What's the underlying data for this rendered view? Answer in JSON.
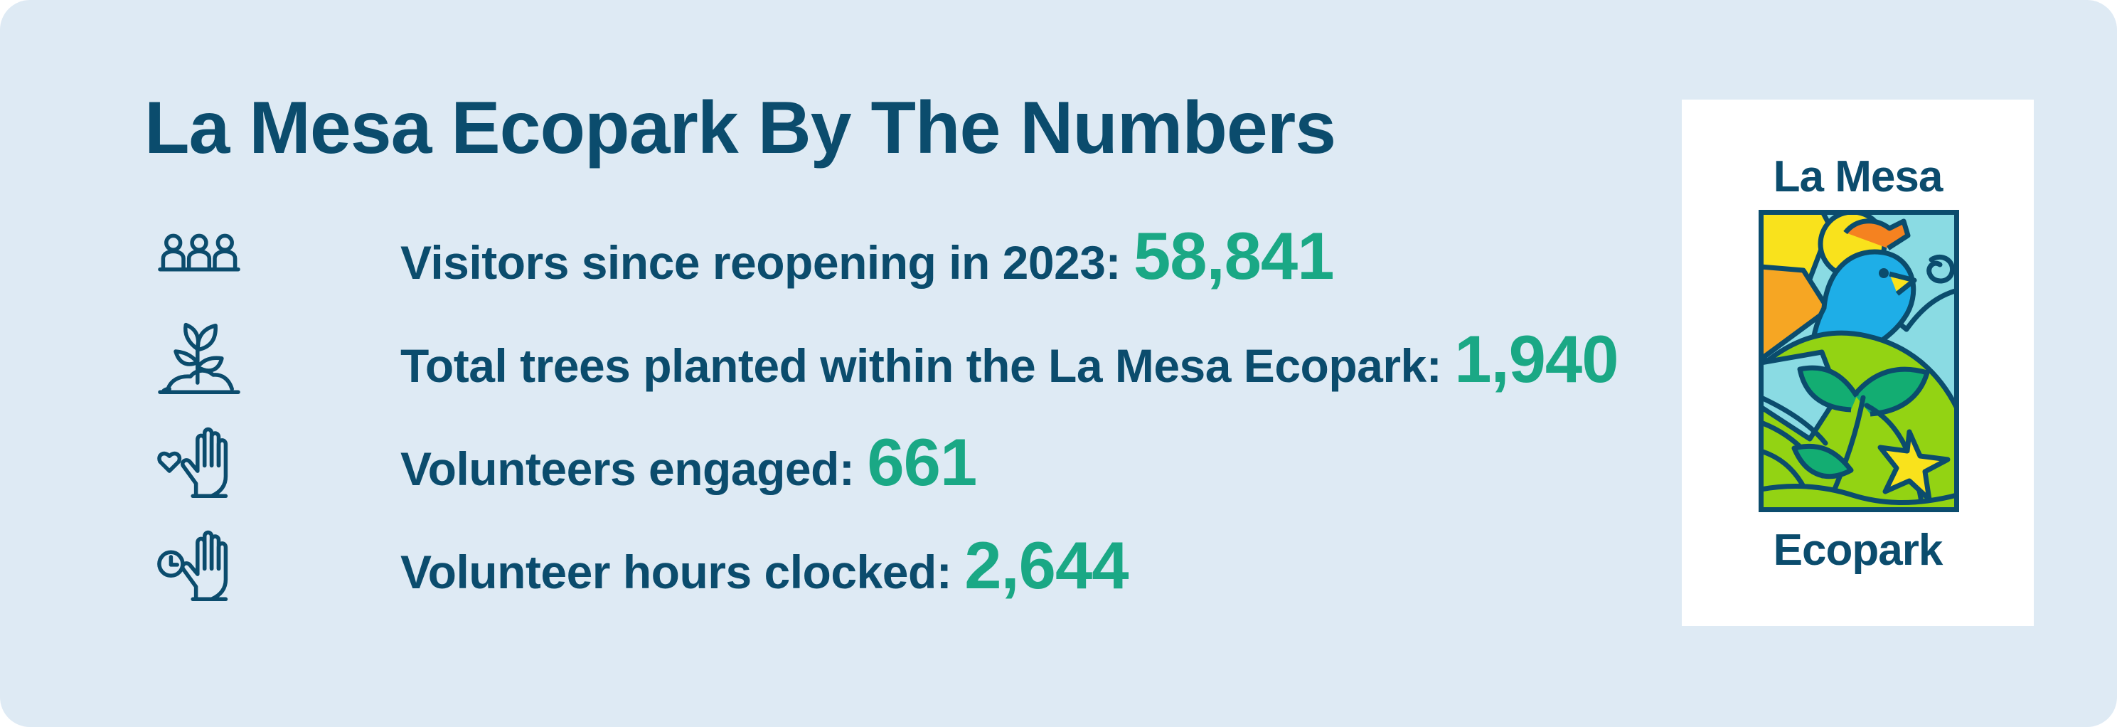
{
  "title": "La Mesa Ecopark By The Numbers",
  "colors": {
    "background": "#deeaf4",
    "primary_text": "#0b4c6d",
    "accent_value": "#1aa885",
    "logo_background": "#ffffff"
  },
  "stats": [
    {
      "icon": "people-group-icon",
      "label": "Visitors since reopening in 2023:",
      "value": "58,841"
    },
    {
      "icon": "tree-sprout-icon",
      "label": "Total trees planted within the La Mesa Ecopark:",
      "value": "1,940"
    },
    {
      "icon": "heart-hand-icon",
      "label": "Volunteers engaged:",
      "value": "661"
    },
    {
      "icon": "clock-hand-icon",
      "label": "Volunteer hours clocked:",
      "value": "2,644"
    }
  ],
  "logo": {
    "top_text": "La Mesa",
    "bottom_text": "Ecopark",
    "art": "bird-sun-leaves-logo-icon"
  }
}
